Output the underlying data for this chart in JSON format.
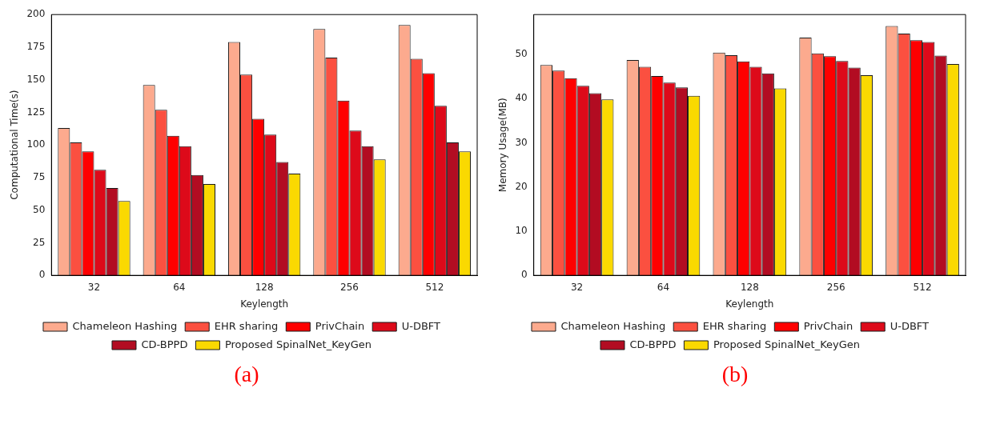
{
  "chart_data": [
    {
      "type": "bar",
      "xlabel": "Keylength",
      "ylabel": "Computational Time(s)",
      "categories": [
        "32",
        "64",
        "128",
        "256",
        "512"
      ],
      "ylim": [
        0,
        200
      ],
      "yticks": [
        0,
        25,
        50,
        75,
        100,
        125,
        150,
        175,
        200
      ],
      "grid": false,
      "legend": "bottom",
      "annotations": [
        "(a)"
      ],
      "series": [
        {
          "name": "Chameleon Hashing",
          "color": "#fcaa8e",
          "values": [
            113,
            146,
            179,
            189,
            192
          ]
        },
        {
          "name": "EHR sharing",
          "color": "#fb5040",
          "values": [
            102,
            127,
            154,
            167,
            166
          ]
        },
        {
          "name": "PrivChain",
          "color": "#fe0000",
          "values": [
            95,
            107,
            120,
            134,
            155
          ]
        },
        {
          "name": "U-DBFT",
          "color": "#dd0a1a",
          "values": [
            81,
            99,
            108,
            111,
            130
          ]
        },
        {
          "name": "CD-BPPD",
          "color": "#b20c22",
          "values": [
            67,
            77,
            87,
            99,
            102
          ]
        },
        {
          "name": "Proposed SpinalNet_KeyGen",
          "color": "#fad901",
          "values": [
            57,
            70,
            78,
            89,
            95
          ]
        }
      ]
    },
    {
      "type": "bar",
      "xlabel": "Keylength",
      "ylabel": "Memory Usage(MB)",
      "categories": [
        "32",
        "64",
        "128",
        "256",
        "512"
      ],
      "ylim": [
        0,
        59
      ],
      "yticks": [
        0,
        10,
        20,
        30,
        40,
        50
      ],
      "grid": false,
      "legend": "bottom",
      "annotations": [
        "(b)"
      ],
      "series": [
        {
          "name": "Chameleon Hashing",
          "color": "#fcaa8e",
          "values": [
            47.6,
            48.7,
            50.4,
            53.8,
            56.4
          ]
        },
        {
          "name": "EHR sharing",
          "color": "#fb5040",
          "values": [
            46.3,
            47.2,
            49.8,
            50.2,
            54.7
          ]
        },
        {
          "name": "PrivChain",
          "color": "#fe0000",
          "values": [
            44.6,
            45.1,
            48.4,
            49.6,
            53.2
          ]
        },
        {
          "name": "U-DBFT",
          "color": "#dd0a1a",
          "values": [
            42.9,
            43.6,
            47.2,
            48.5,
            52.8
          ]
        },
        {
          "name": "CD-BPPD",
          "color": "#b20c22",
          "values": [
            41.2,
            42.5,
            45.7,
            47.0,
            49.7
          ]
        },
        {
          "name": "Proposed SpinalNet_KeyGen",
          "color": "#fad901",
          "values": [
            39.8,
            40.6,
            42.3,
            45.3,
            47.8
          ]
        }
      ]
    }
  ]
}
